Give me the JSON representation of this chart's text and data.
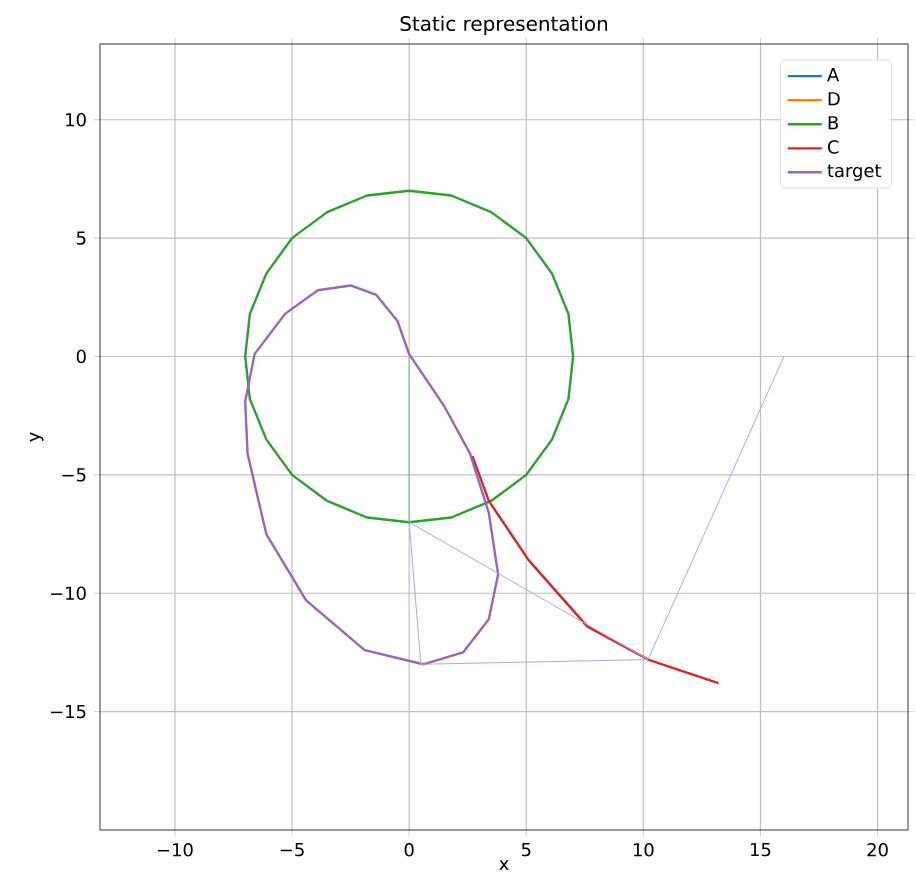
{
  "chart_data": {
    "type": "line",
    "title": "Static representation",
    "xlabel": "x",
    "ylabel": "y",
    "xlim": [
      -13.2,
      21.3
    ],
    "ylim": [
      -20,
      13.2
    ],
    "xticks": [
      {
        "value": -10,
        "label": "−10"
      },
      {
        "value": -5,
        "label": "−5"
      },
      0,
      5,
      10,
      15,
      20
    ],
    "yticks": [
      {
        "value": -15,
        "label": "−15"
      },
      {
        "value": -10,
        "label": "−10"
      },
      {
        "value": -5,
        "label": "−5"
      },
      0,
      5,
      10
    ],
    "grid": true,
    "legend": "top right",
    "series": [
      {
        "name": "A",
        "color": "#1f77b4"
      },
      {
        "name": "D",
        "color": "#ff7f0e"
      },
      {
        "name": "B",
        "color": "#2ca02c",
        "x": [
          7,
          6.8,
          6.1,
          5,
          3.5,
          1.8,
          0,
          -1.8,
          -3.5,
          -5,
          -6.1,
          -6.8,
          -7,
          -6.8,
          -6.1,
          -5,
          -3.5,
          -1.8,
          0,
          1.8,
          3.5,
          5,
          6.1,
          6.8,
          7,
          6.8
        ],
        "values": [
          0,
          1.8,
          3.5,
          5,
          6.1,
          6.8,
          7,
          6.8,
          6.1,
          5,
          3.5,
          1.8,
          0,
          -1.8,
          -3.5,
          -5,
          -6.1,
          -6.8,
          -7,
          -6.8,
          -6.1,
          -5,
          -3.5,
          -1.8,
          0,
          1.8
        ]
      },
      {
        "name": "C",
        "color": "#d62728",
        "x": [
          2.7,
          3.4,
          5.1,
          7.6,
          10.2,
          13.2
        ],
        "values": [
          -4.2,
          -6.1,
          -8.6,
          -11.4,
          -12.8,
          -13.8
        ]
      },
      {
        "name": "target",
        "color": "#9467bd",
        "x": [
          0,
          1.5,
          2.6,
          3.4,
          3.8,
          3.4,
          2.3,
          0.6,
          -1.9,
          -4.4,
          -6.1,
          -6.9,
          -7,
          -6.6,
          -5.3,
          -3.9,
          -2.5,
          -1.4,
          -0.5,
          0,
          1.5
        ],
        "values": [
          0.1,
          -2.1,
          -4.1,
          -6.6,
          -9.2,
          -11.1,
          -12.5,
          -13,
          -12.4,
          -10.3,
          -7.5,
          -4.1,
          -1.9,
          0.1,
          1.8,
          2.8,
          3,
          2.6,
          1.5,
          0.1,
          -2.1
        ]
      },
      {
        "color": "#7fbf7f",
        "x": [
          0,
          0
        ],
        "values": [
          0,
          -7
        ]
      },
      {
        "color": "#a9a9e0",
        "x": [
          10.2,
          0,
          0.5,
          10.2,
          16.0
        ],
        "values": [
          -12.8,
          -7.0,
          -13,
          -12.8,
          0
        ]
      }
    ]
  }
}
